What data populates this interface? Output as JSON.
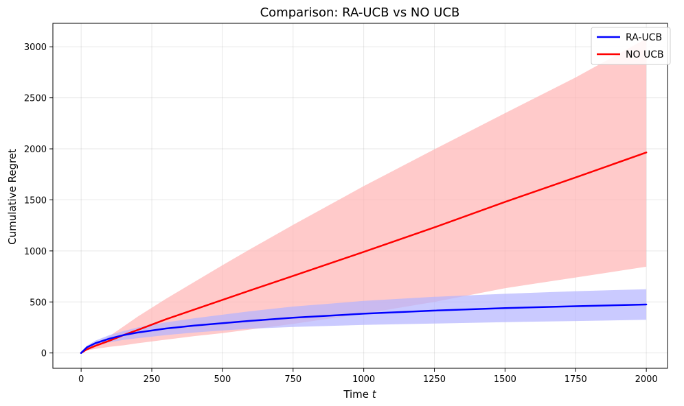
{
  "chart_data": {
    "type": "line",
    "title": "Comparison: RA-UCB vs NO UCB",
    "xlabel": "Time t",
    "xlabel_main": "Time ",
    "xlabel_var": "t",
    "ylabel": "Cumulative Regret",
    "xlim": [
      -100,
      2075
    ],
    "ylim": [
      -150,
      3230
    ],
    "xticks": [
      0,
      250,
      500,
      750,
      1000,
      1250,
      1500,
      1750,
      2000
    ],
    "yticks": [
      0,
      500,
      1000,
      1500,
      2000,
      2500,
      3000
    ],
    "grid": true,
    "legend": {
      "position": "top-right",
      "entries": [
        "RA-UCB",
        "NO UCB"
      ]
    },
    "x": [
      0,
      20,
      50,
      100,
      150,
      200,
      300,
      400,
      500,
      600,
      750,
      1000,
      1250,
      1500,
      1750,
      2000
    ],
    "series": [
      {
        "name": "RA-UCB",
        "color": "#0000ff",
        "band_color": "#b3b3ff",
        "mean": [
          0,
          55,
          95,
          140,
          175,
          200,
          240,
          268,
          292,
          315,
          345,
          385,
          415,
          440,
          458,
          475
        ],
        "lower": [
          0,
          40,
          70,
          105,
          128,
          145,
          175,
          200,
          220,
          238,
          255,
          275,
          288,
          302,
          313,
          325
        ],
        "upper": [
          0,
          70,
          120,
          175,
          215,
          250,
          300,
          340,
          375,
          410,
          455,
          510,
          550,
          580,
          605,
          625
        ]
      },
      {
        "name": "NO UCB",
        "color": "#ff0000",
        "band_color": "#ffb3b3",
        "mean": [
          0,
          35,
          70,
          120,
          175,
          225,
          330,
          425,
          520,
          615,
          755,
          990,
          1230,
          1480,
          1720,
          1965
        ],
        "lower": [
          0,
          25,
          40,
          60,
          75,
          95,
          130,
          165,
          195,
          230,
          285,
          385,
          500,
          635,
          740,
          845
        ],
        "upper": [
          0,
          50,
          90,
          165,
          260,
          355,
          530,
          695,
          860,
          1020,
          1255,
          1635,
          1995,
          2350,
          2700,
          3080
        ]
      }
    ]
  }
}
